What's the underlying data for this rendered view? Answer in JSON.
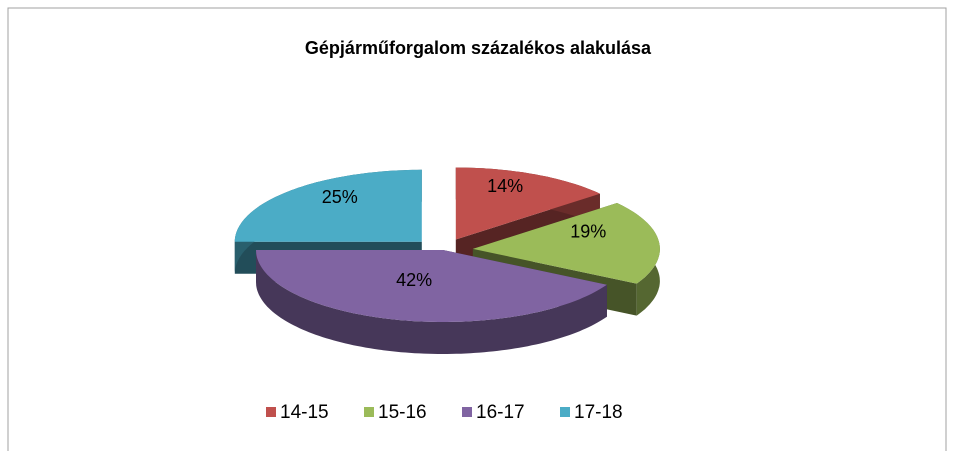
{
  "chart_data": {
    "type": "pie3d",
    "title": "Gépjárműforgalom százalékos alakulása",
    "categories": [
      "14-15",
      "15-16",
      "16-17",
      "17-18"
    ],
    "values": [
      14,
      19,
      42,
      25
    ],
    "value_labels": [
      "14%",
      "19%",
      "42%",
      "25%"
    ],
    "colors": [
      "#c0504d",
      "#9bbb59",
      "#8064a2",
      "#4bacc6"
    ],
    "legend": "bottom"
  }
}
